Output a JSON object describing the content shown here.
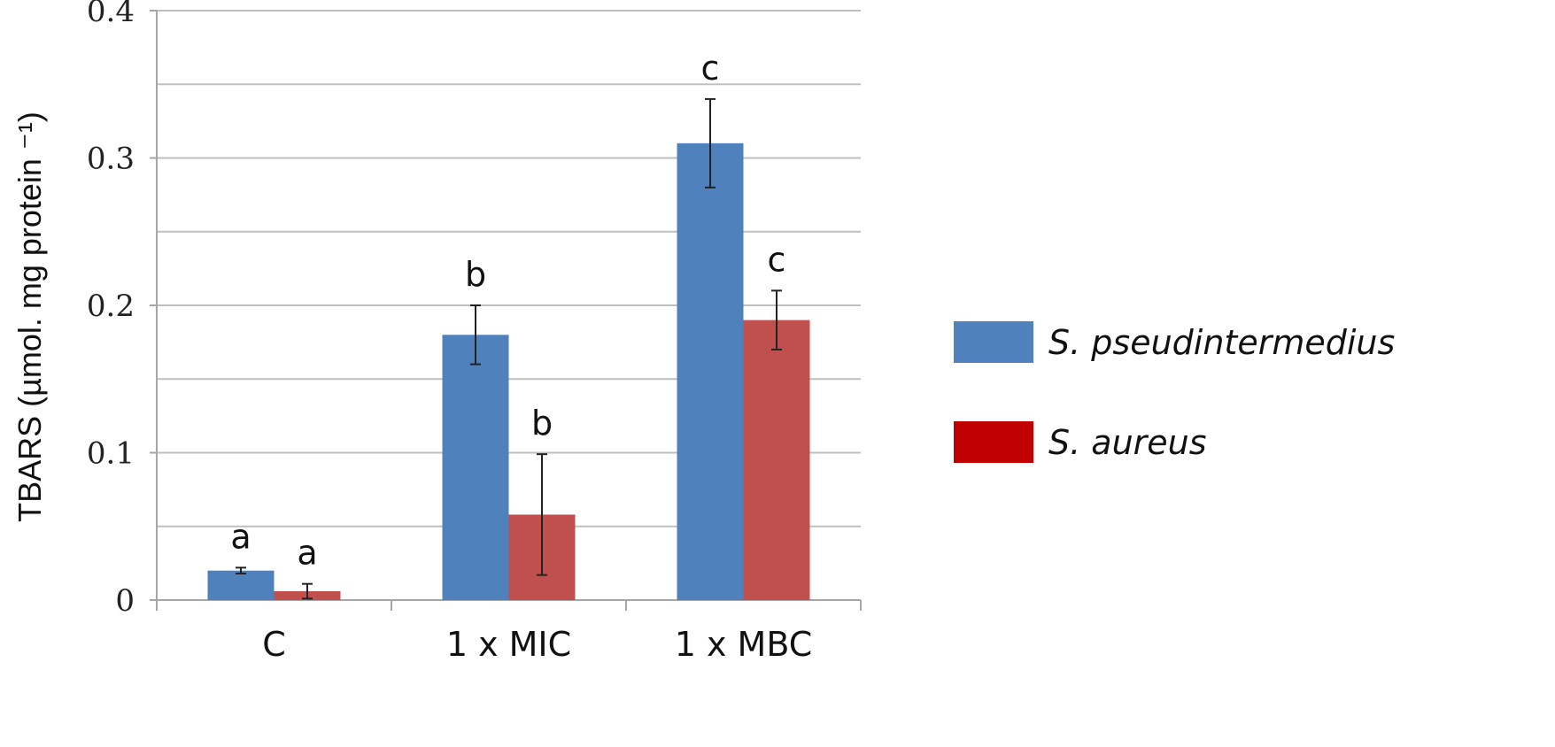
{
  "chart_data": {
    "type": "bar",
    "categories": [
      "C",
      "1 x MIC",
      "1 x MBC"
    ],
    "series": [
      {
        "name": "S. pseudintermedius",
        "color": "#4F81BD",
        "values": [
          0.02,
          0.18,
          0.31
        ],
        "errors": [
          0.002,
          0.02,
          0.03
        ],
        "significance": [
          "a",
          "b",
          "c"
        ]
      },
      {
        "name": "S. aureus",
        "color": "#C0504D",
        "legend_color": "#C00000",
        "values": [
          0.006,
          0.058,
          0.19
        ],
        "errors": [
          0.005,
          0.041,
          0.02
        ],
        "significance": [
          "a",
          "b",
          "c"
        ]
      }
    ],
    "ylabel": "TBARS (µmol. mg protein ⁻¹)",
    "ylim": [
      0,
      0.4
    ],
    "yticks": [
      "0",
      "0.1",
      "0.2",
      "0.3",
      "0.4"
    ],
    "ytick_values": [
      0,
      0.1,
      0.2,
      0.3,
      0.4
    ],
    "minor_gridlines": true,
    "grid": true,
    "legend_position": "right"
  }
}
